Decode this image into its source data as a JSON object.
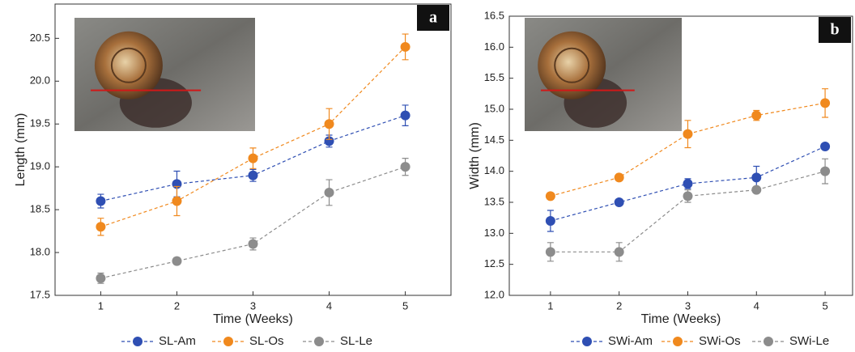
{
  "chart_data": [
    {
      "type": "line",
      "panel_label": "a",
      "x_label": "Time (Weeks)",
      "y_label": "Length (mm)",
      "x": [
        1,
        2,
        3,
        4,
        5
      ],
      "xlim": [
        0.4,
        5.6
      ],
      "xticks": [
        1,
        2,
        3,
        4,
        5
      ],
      "ylim": [
        17.5,
        20.9
      ],
      "yticks": [
        17.5,
        {
          "value": 18,
          "label": "18.0"
        },
        18.5,
        {
          "value": 19,
          "label": "19.0"
        },
        19.5,
        {
          "value": 20,
          "label": "20.0"
        },
        20.5
      ],
      "series": [
        {
          "name": "SL-Am",
          "color": "#2f4fb3",
          "values": [
            18.6,
            18.8,
            18.9,
            19.3,
            19.6
          ],
          "errors": [
            0.08,
            0.15,
            0.07,
            0.07,
            0.12
          ]
        },
        {
          "name": "SL-Os",
          "color": "#f0891e",
          "values": [
            18.3,
            18.6,
            19.1,
            19.5,
            20.4
          ],
          "errors": [
            0.1,
            0.17,
            0.12,
            0.18,
            0.15
          ]
        },
        {
          "name": "SL-Le",
          "color": "#8c8c8c",
          "values": [
            17.7,
            17.9,
            18.1,
            18.7,
            19.0
          ],
          "errors": [
            0.06,
            0.04,
            0.07,
            0.15,
            0.1
          ]
        }
      ]
    },
    {
      "type": "line",
      "panel_label": "b",
      "x_label": "Time (Weeks)",
      "y_label": "Width (mm)",
      "x": [
        1,
        2,
        3,
        4,
        5
      ],
      "xlim": [
        0.4,
        5.4
      ],
      "xticks": [
        1,
        2,
        3,
        4,
        5
      ],
      "ylim": [
        12,
        16.5
      ],
      "yticks": [
        {
          "value": 12,
          "label": "12.0"
        },
        12.5,
        {
          "value": 13,
          "label": "13.0"
        },
        13.5,
        {
          "value": 14,
          "label": "14.0"
        },
        14.5,
        {
          "value": 15,
          "label": "15.0"
        },
        15.5,
        {
          "value": 16,
          "label": "16.0"
        },
        16.5
      ],
      "series": [
        {
          "name": "SWi-Am",
          "color": "#2f4fb3",
          "values": [
            13.2,
            13.5,
            13.8,
            13.9,
            14.4
          ],
          "errors": [
            0.17,
            0.05,
            0.08,
            0.18,
            0.05
          ]
        },
        {
          "name": "SWi-Os",
          "color": "#f0891e",
          "values": [
            13.6,
            13.9,
            14.6,
            14.9,
            15.1
          ],
          "errors": [
            0.05,
            0.05,
            0.22,
            0.08,
            0.23
          ]
        },
        {
          "name": "SWi-Le",
          "color": "#8c8c8c",
          "values": [
            12.7,
            12.7,
            13.6,
            13.7,
            14.0
          ],
          "errors": [
            0.15,
            0.15,
            0.1,
            0.05,
            0.2
          ]
        }
      ]
    }
  ]
}
